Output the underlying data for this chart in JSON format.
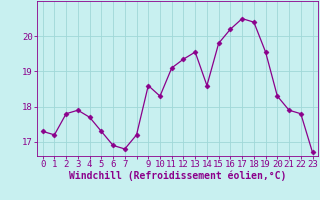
{
  "x": [
    0,
    1,
    2,
    3,
    4,
    5,
    6,
    7,
    8,
    9,
    10,
    11,
    12,
    13,
    14,
    15,
    16,
    17,
    18,
    19,
    20,
    21,
    22,
    23
  ],
  "y": [
    17.3,
    17.2,
    17.8,
    17.9,
    17.7,
    17.3,
    16.9,
    16.8,
    17.2,
    18.6,
    18.3,
    19.1,
    19.35,
    19.55,
    18.6,
    19.8,
    20.2,
    20.5,
    20.4,
    19.55,
    18.3,
    17.9,
    17.8,
    16.7
  ],
  "line_color": "#8b008b",
  "marker": "D",
  "marker_size": 2.5,
  "bg_color": "#c8f0f0",
  "grid_color": "#a0d8d8",
  "xlabel": "Windchill (Refroidissement éolien,°C)",
  "ylim": [
    16.6,
    21.0
  ],
  "xlim": [
    -0.5,
    23.5
  ],
  "yticks": [
    17,
    18,
    19,
    20
  ],
  "xticks": [
    0,
    1,
    2,
    3,
    4,
    5,
    6,
    7,
    8,
    9,
    10,
    11,
    12,
    13,
    14,
    15,
    16,
    17,
    18,
    19,
    20,
    21,
    22,
    23
  ],
  "xtick_labels": [
    "0",
    "1",
    "2",
    "3",
    "4",
    "5",
    "6",
    "7",
    "",
    "9",
    "10",
    "11",
    "12",
    "13",
    "14",
    "15",
    "16",
    "17",
    "18",
    "19",
    "20",
    "21",
    "22",
    "23"
  ],
  "label_fontsize": 7,
  "tick_fontsize": 6.5
}
